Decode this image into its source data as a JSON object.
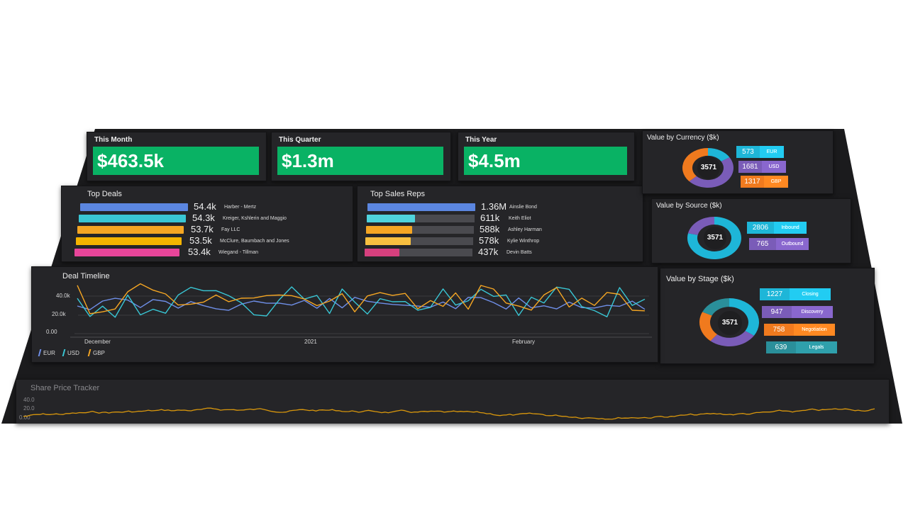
{
  "kpis": [
    {
      "title": "This Month",
      "value": "$463.5k"
    },
    {
      "title": "This Quarter",
      "value": "$1.3m"
    },
    {
      "title": "This Year",
      "value": "$4.5m"
    }
  ],
  "top_deals": {
    "title": "Top Deals",
    "items": [
      {
        "value": "54.4k",
        "label": "Harber - Mertz",
        "color": "#5b86e0"
      },
      {
        "value": "54.3k",
        "label": "Kreiger, Kshlerin and Maggio",
        "color": "#39c6d4"
      },
      {
        "value": "53.7k",
        "label": "Fay LLC",
        "color": "#f5a623"
      },
      {
        "value": "53.5k",
        "label": "McClure, Baumbach and Jones",
        "color": "#f5b400"
      },
      {
        "value": "53.4k",
        "label": "Wiegand - Tillman",
        "color": "#e8459a"
      }
    ]
  },
  "top_reps": {
    "title": "Top Sales Reps",
    "items": [
      {
        "value": "1.36M",
        "label": "Ainslie Bond",
        "color": "#5b86e0",
        "fill": 1.0
      },
      {
        "value": "611k",
        "label": "Keith Eliot",
        "color": "#4fd3dc",
        "fill": 0.45
      },
      {
        "value": "588k",
        "label": "Ashley Harman",
        "color": "#f5a623",
        "fill": 0.43
      },
      {
        "value": "578k",
        "label": "Kylie Winthrop",
        "color": "#f8c040",
        "fill": 0.42
      },
      {
        "value": "437k",
        "label": "Devin Batts",
        "color": "#d6407e",
        "fill": 0.32
      }
    ]
  },
  "currency": {
    "title": "Value by Currency ($k)",
    "center": "3571",
    "items": [
      {
        "value": "573",
        "name": "EUR",
        "color": "#1eb6d8"
      },
      {
        "value": "1681",
        "name": "USD",
        "color": "#7a5cb8"
      },
      {
        "value": "1317",
        "name": "GBP",
        "color": "#f07a1e"
      }
    ]
  },
  "source": {
    "title": "Value by Source ($k)",
    "center": "3571",
    "items": [
      {
        "value": "2806",
        "name": "Inbound",
        "color": "#1eb6d8"
      },
      {
        "value": "765",
        "name": "Outbound",
        "color": "#7a5cb8"
      }
    ]
  },
  "stage": {
    "title": "Value by Stage ($k)",
    "center": "3571",
    "items": [
      {
        "value": "1227",
        "name": "Closing",
        "color": "#1eb6d8"
      },
      {
        "value": "947",
        "name": "Discovery",
        "color": "#7a5cb8"
      },
      {
        "value": "758",
        "name": "Negotiation",
        "color": "#f07a1e"
      },
      {
        "value": "639",
        "name": "Legals",
        "color": "#2a8f9a"
      }
    ]
  },
  "timeline": {
    "title": "Deal Timeline",
    "y_ticks": [
      "40.0k",
      "20.0k",
      "0.00"
    ],
    "x_ticks": [
      "December",
      "2021",
      "February"
    ],
    "legend": [
      {
        "name": "EUR",
        "color": "#6f8fe8"
      },
      {
        "name": "USD",
        "color": "#39c6d4"
      },
      {
        "name": "GBP",
        "color": "#f5a623"
      }
    ],
    "colors": {
      "EUR": "#6f8fe8",
      "USD": "#39c6d4",
      "GBP": "#f5a623"
    }
  },
  "share_tracker": {
    "title": "Share Price Tracker",
    "y_ticks": [
      "40.0",
      "20.0",
      "0.00"
    ],
    "color": "#d9970c"
  }
}
